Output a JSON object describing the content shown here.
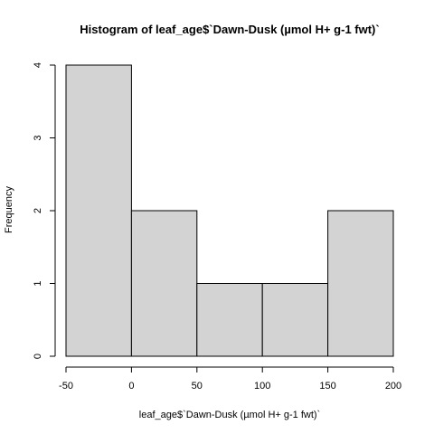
{
  "chart_data": {
    "type": "bar",
    "subtype": "histogram",
    "title": "Histogram of leaf_age$`Dawn-Dusk (µmol H+ g-1 fwt)`",
    "xlabel": "leaf_age$`Dawn-Dusk (µmol H+ g-1 fwt)`",
    "ylabel": "Frequency",
    "bins": [
      {
        "from": -50,
        "to": 0,
        "count": 4
      },
      {
        "from": 0,
        "to": 50,
        "count": 2
      },
      {
        "from": 50,
        "to": 100,
        "count": 1
      },
      {
        "from": 100,
        "to": 150,
        "count": 1
      },
      {
        "from": 150,
        "to": 200,
        "count": 2
      }
    ],
    "xlim": [
      -50,
      200
    ],
    "ylim": [
      0,
      4
    ],
    "xticks": [
      -50,
      0,
      50,
      100,
      150,
      200
    ],
    "yticks": [
      0,
      1,
      2,
      3,
      4
    ],
    "bar_color": "#d3d3d3",
    "edge_color": "#000000",
    "grid": false
  }
}
